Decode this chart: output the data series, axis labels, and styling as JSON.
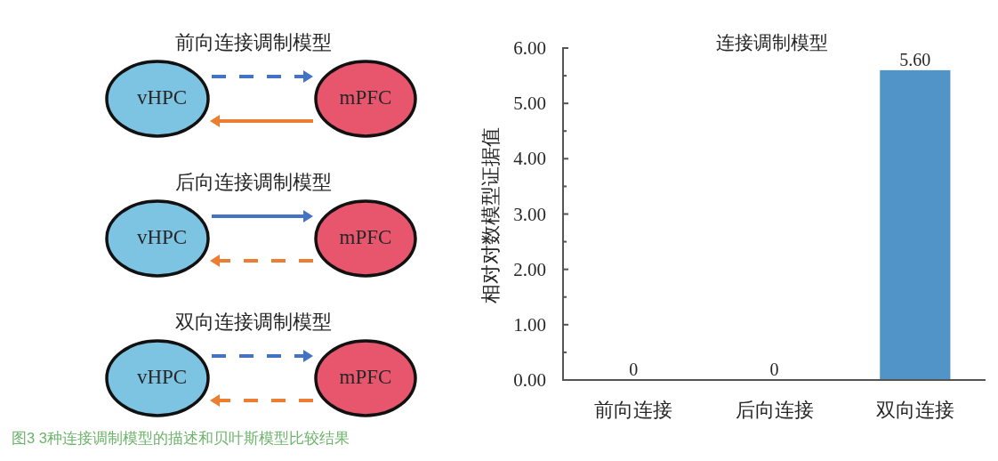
{
  "chart_data": [
    {
      "type": "other",
      "annotations": [
        "前向连接调制模型",
        "vHPC",
        "mPFC",
        "后向连接调制模型",
        "vHPC",
        "mPFC",
        "双向连接调制模型",
        "vHPC",
        "mPFC",
        "图3 3种连接调制模型的描述和贝叶斯模型比较结果"
      ]
    },
    {
      "type": "bar",
      "title": "连接调制模型",
      "ylabel": "相对对数模型证据值",
      "categories": [
        "前向连接",
        "后向连接",
        "双向连接"
      ],
      "values": [
        0,
        0,
        5.6
      ],
      "color": "#5094c8",
      "value_labels": [
        "0",
        "0",
        "5.60"
      ],
      "ylim": [
        0,
        6
      ],
      "yticks": [
        {
          "value": 0,
          "label": "0.00"
        },
        {
          "value": 0.5,
          "label": null
        },
        {
          "value": 1,
          "label": "1.00"
        },
        {
          "value": 1.5,
          "label": null
        },
        {
          "value": 2,
          "label": "2.00"
        },
        {
          "value": 2.5,
          "label": null
        },
        {
          "value": 3,
          "label": "3.00"
        },
        {
          "value": 3.5,
          "label": null
        },
        {
          "value": 4,
          "label": "4.00"
        },
        {
          "value": 4.5,
          "label": null
        },
        {
          "value": 5,
          "label": "5.00"
        },
        {
          "value": 5.5,
          "label": null
        },
        {
          "value": 6,
          "label": "6.00"
        }
      ]
    }
  ]
}
